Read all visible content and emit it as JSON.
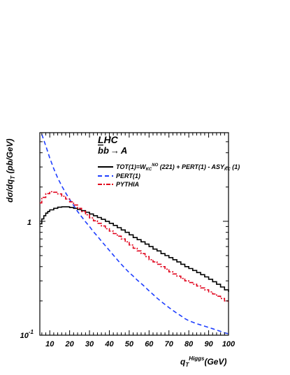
{
  "chart_data": {
    "type": "line",
    "title": "LHC",
    "subtitle": "b̅b → A",
    "subtitle_parts": {
      "q1": "b",
      "q2": "b",
      "arrow": "→",
      "boson": "A"
    },
    "xlabel": "q",
    "xlabel_sub": "T",
    "xlabel_sup": "Higgs",
    "xlabel_unit": "(GeV)",
    "ylabel": "dσ/dq",
    "ylabel_sub": "T",
    "ylabel_unit": " (pb/GeV)",
    "xlim": [
      5,
      100
    ],
    "ylim": [
      0.1,
      6
    ],
    "yscale": "log",
    "xticks": [
      "10",
      "20",
      "30",
      "40",
      "50",
      "60",
      "70",
      "80",
      "90",
      "100"
    ],
    "xtick_values": [
      10,
      20,
      30,
      40,
      50,
      60,
      70,
      80,
      90,
      100
    ],
    "yticks": [
      {
        "value": 1,
        "label": "1",
        "exp": ""
      },
      {
        "value": 0.1,
        "label": "10",
        "exp": "-1"
      }
    ],
    "legend_position": "top-right",
    "series": [
      {
        "name": "TOT(1)=W",
        "name_parts": {
          "pre": "TOT(1)=W",
          "sub": "KC",
          "sup": "NO",
          "post": " (221) + PERT(1) - ASY",
          "sub2": "KC",
          "post2": " (1)"
        },
        "color": "#000000",
        "style": "solid-step",
        "x": [
          5,
          6,
          7,
          8,
          9,
          10,
          12,
          14,
          16,
          18,
          20,
          22,
          24,
          26,
          28,
          30,
          32,
          34,
          36,
          38,
          40,
          42,
          44,
          46,
          48,
          50,
          52,
          54,
          56,
          58,
          60,
          62,
          64,
          66,
          68,
          70,
          72,
          74,
          76,
          78,
          80,
          82,
          84,
          86,
          88,
          90,
          92,
          94,
          96,
          98,
          100
        ],
        "y": [
          0.95,
          1.05,
          1.12,
          1.18,
          1.22,
          1.26,
          1.3,
          1.33,
          1.34,
          1.34,
          1.32,
          1.3,
          1.27,
          1.24,
          1.2,
          1.16,
          1.12,
          1.08,
          1.04,
          1.0,
          0.96,
          0.92,
          0.88,
          0.84,
          0.8,
          0.76,
          0.72,
          0.69,
          0.66,
          0.63,
          0.6,
          0.57,
          0.55,
          0.52,
          0.5,
          0.48,
          0.46,
          0.44,
          0.42,
          0.4,
          0.385,
          0.37,
          0.355,
          0.34,
          0.325,
          0.31,
          0.295,
          0.28,
          0.265,
          0.25,
          0.24
        ]
      },
      {
        "name": "PERT(1)",
        "color": "#1f3fff",
        "style": "dashed",
        "x": [
          6,
          8,
          10,
          12,
          14,
          16,
          18,
          20,
          22,
          24,
          26,
          28,
          30,
          32,
          34,
          36,
          38,
          40,
          42,
          44,
          46,
          48,
          50,
          52,
          54,
          56,
          58,
          60,
          62,
          64,
          66,
          68,
          70,
          72,
          74,
          76,
          78,
          80,
          82,
          84,
          86,
          88,
          90,
          92,
          94,
          96,
          98,
          100
        ],
        "y": [
          5.8,
          4.6,
          3.6,
          2.9,
          2.4,
          2.05,
          1.78,
          1.56,
          1.38,
          1.22,
          1.1,
          0.99,
          0.9,
          0.81,
          0.74,
          0.67,
          0.61,
          0.555,
          0.505,
          0.46,
          0.42,
          0.385,
          0.355,
          0.33,
          0.305,
          0.285,
          0.265,
          0.245,
          0.228,
          0.212,
          0.198,
          0.186,
          0.175,
          0.165,
          0.156,
          0.148,
          0.14,
          0.134,
          0.13,
          0.126,
          0.123,
          0.12,
          0.117,
          0.114,
          0.111,
          0.108,
          0.105,
          0.103
        ]
      },
      {
        "name": "PYTHIA",
        "color": "#e0001a",
        "style": "dash-dot-step",
        "x": [
          5,
          6,
          8,
          10,
          12,
          14,
          16,
          18,
          20,
          22,
          24,
          26,
          28,
          30,
          32,
          34,
          36,
          38,
          40,
          42,
          44,
          46,
          48,
          50,
          52,
          54,
          56,
          58,
          60,
          62,
          64,
          66,
          68,
          70,
          72,
          74,
          76,
          78,
          80,
          82,
          84,
          86,
          88,
          90,
          92,
          94,
          96,
          98,
          100
        ],
        "y": [
          1.45,
          1.62,
          1.75,
          1.82,
          1.8,
          1.74,
          1.66,
          1.57,
          1.48,
          1.39,
          1.3,
          1.22,
          1.14,
          1.07,
          1.01,
          0.96,
          0.91,
          0.86,
          0.82,
          0.78,
          0.74,
          0.7,
          0.66,
          0.62,
          0.58,
          0.55,
          0.52,
          0.49,
          0.46,
          0.44,
          0.42,
          0.4,
          0.38,
          0.36,
          0.345,
          0.33,
          0.315,
          0.3,
          0.29,
          0.28,
          0.27,
          0.26,
          0.25,
          0.24,
          0.23,
          0.22,
          0.21,
          0.2,
          0.195
        ]
      }
    ]
  }
}
